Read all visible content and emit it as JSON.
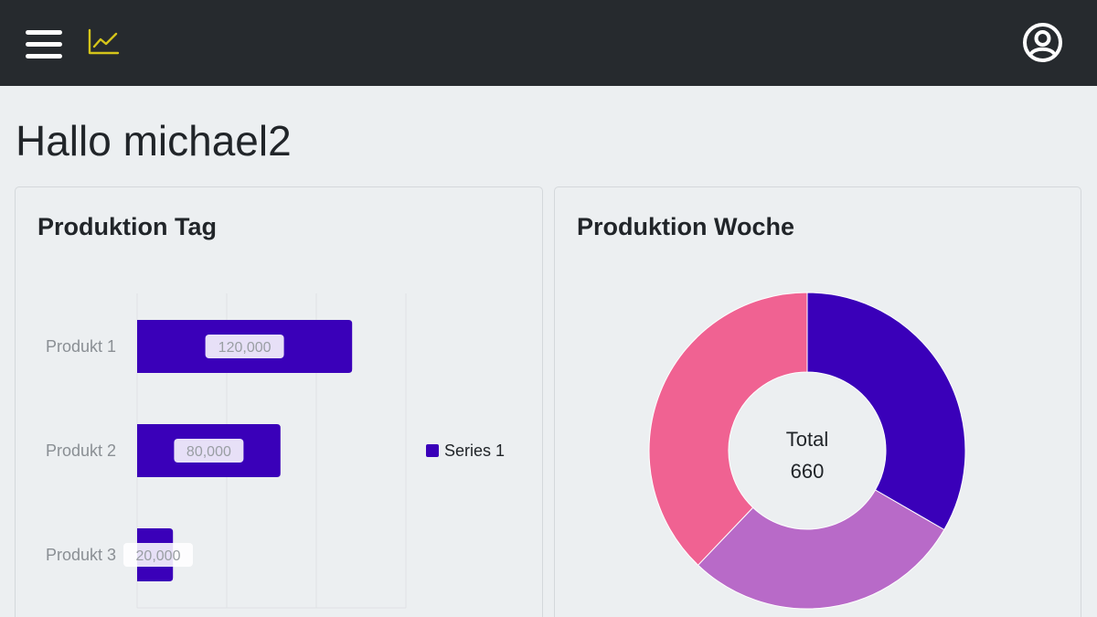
{
  "header": {
    "menu_icon": "hamburger-menu-icon",
    "logo_icon": "line-chart-icon",
    "user_icon": "user-circle-icon",
    "logo_color": "#d4c41a"
  },
  "greeting": "Hallo michael2",
  "cards": {
    "day": {
      "title": "Produktion Tag"
    },
    "week": {
      "title": "Produktion Woche"
    }
  },
  "chart_data": [
    {
      "type": "bar",
      "orientation": "horizontal",
      "title": "Produktion Tag",
      "categories": [
        "Produkt 1",
        "Produkt 2",
        "Produkt 3"
      ],
      "series": [
        {
          "name": "Series 1",
          "values": [
            120000,
            80000,
            20000
          ],
          "labels": [
            "120,000",
            "80,000",
            "20,000"
          ],
          "color": "#3a00b9"
        }
      ],
      "xlim": [
        0,
        150000
      ],
      "grid": true,
      "legend": "right"
    },
    {
      "type": "pie",
      "variant": "donut",
      "title": "Produktion Woche",
      "center_label": "Total",
      "center_value": "660",
      "slices": [
        {
          "value": 220,
          "color": "#3a00b9"
        },
        {
          "value": 190,
          "color": "#b86ac8"
        },
        {
          "value": 250,
          "color": "#f06292"
        }
      ]
    }
  ]
}
